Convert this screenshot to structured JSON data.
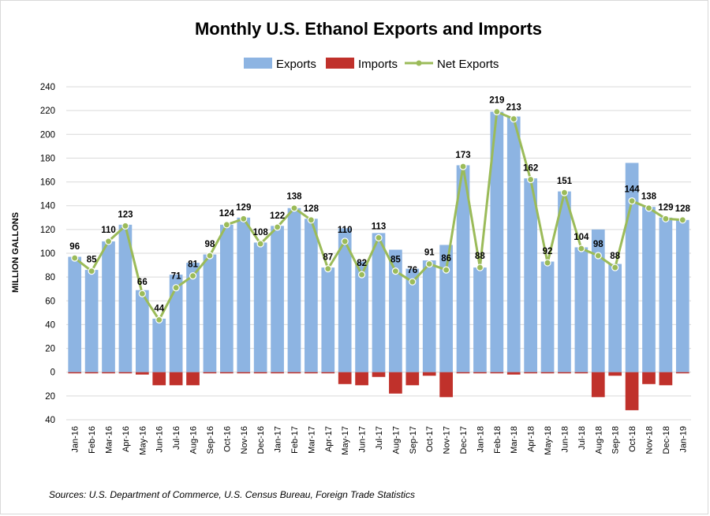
{
  "chart_data": {
    "type": "bar",
    "title": "Monthly U.S. Ethanol Exports and Imports",
    "ylabel": "MILLION GALLONS",
    "xlabel": "",
    "ylim": [
      -40,
      240
    ],
    "y_ticks": [
      {
        "value": 240,
        "label": "240"
      },
      {
        "value": 220,
        "label": "220"
      },
      {
        "value": 200,
        "label": "200"
      },
      {
        "value": 180,
        "label": "180"
      },
      {
        "value": 160,
        "label": "160"
      },
      {
        "value": 140,
        "label": "140"
      },
      {
        "value": 120,
        "label": "120"
      },
      {
        "value": 100,
        "label": "100"
      },
      {
        "value": 80,
        "label": "80"
      },
      {
        "value": 60,
        "label": "60"
      },
      {
        "value": 40,
        "label": "40"
      },
      {
        "value": 20,
        "label": "20"
      },
      {
        "value": 0,
        "label": "0"
      },
      {
        "value": -20,
        "label": "20"
      },
      {
        "value": -40,
        "label": "40"
      }
    ],
    "grid": true,
    "legend_position": "top",
    "categories": [
      "Jan-16",
      "Feb-16",
      "Mar-16",
      "Apr-16",
      "May-16",
      "Jun-16",
      "Jul-16",
      "Aug-16",
      "Sep-16",
      "Oct-16",
      "Nov-16",
      "Dec-16",
      "Jan-17",
      "Feb-17",
      "Mar-17",
      "Apr-17",
      "May-17",
      "Jun-17",
      "Jul-17",
      "Aug-17",
      "Sep-17",
      "Oct-17",
      "Nov-17",
      "Dec-17",
      "Jan-18",
      "Feb-18",
      "Mar-18",
      "Apr-18",
      "May-18",
      "Jun-18",
      "Jul-18",
      "Aug-18",
      "Sep-18",
      "Oct-18",
      "Nov-18",
      "Dec-18",
      "Jan-19"
    ],
    "series": [
      {
        "name": "Exports",
        "kind": "bar",
        "color": "#8db4e2",
        "values": [
          97,
          86,
          110,
          124,
          69,
          45,
          82,
          92,
          99,
          124,
          130,
          109,
          123,
          138,
          129,
          88,
          121,
          93,
          117,
          103,
          87,
          94,
          107,
          174,
          88,
          219,
          215,
          163,
          93,
          152,
          105,
          120,
          91,
          176,
          139,
          130,
          128
        ]
      },
      {
        "name": "Imports",
        "kind": "bar",
        "color": "#c0312b",
        "values": [
          -1,
          -1,
          -1,
          -1,
          -2,
          -11,
          -11,
          -11,
          -1,
          -1,
          -1,
          -1,
          -1,
          -1,
          -1,
          -1,
          -10,
          -11,
          -4,
          -18,
          -11,
          -3,
          -21,
          -1,
          -1,
          -1,
          -2,
          -1,
          -1,
          -1,
          -1,
          -21,
          -3,
          -32,
          -10,
          -11,
          -1
        ]
      },
      {
        "name": "Net Exports",
        "kind": "line",
        "color": "#9bbb59",
        "values": [
          96,
          85,
          110,
          123,
          66,
          44,
          71,
          81,
          98,
          124,
          129,
          108,
          122,
          138,
          128,
          87,
          110,
          82,
          113,
          85,
          76,
          91,
          86,
          173,
          88,
          219,
          213,
          162,
          92,
          151,
          104,
          98,
          88,
          144,
          138,
          129,
          128
        ]
      }
    ],
    "source": "Sources: U.S. Department of Commerce, U.S. Census Bureau, Foreign Trade Statistics"
  }
}
